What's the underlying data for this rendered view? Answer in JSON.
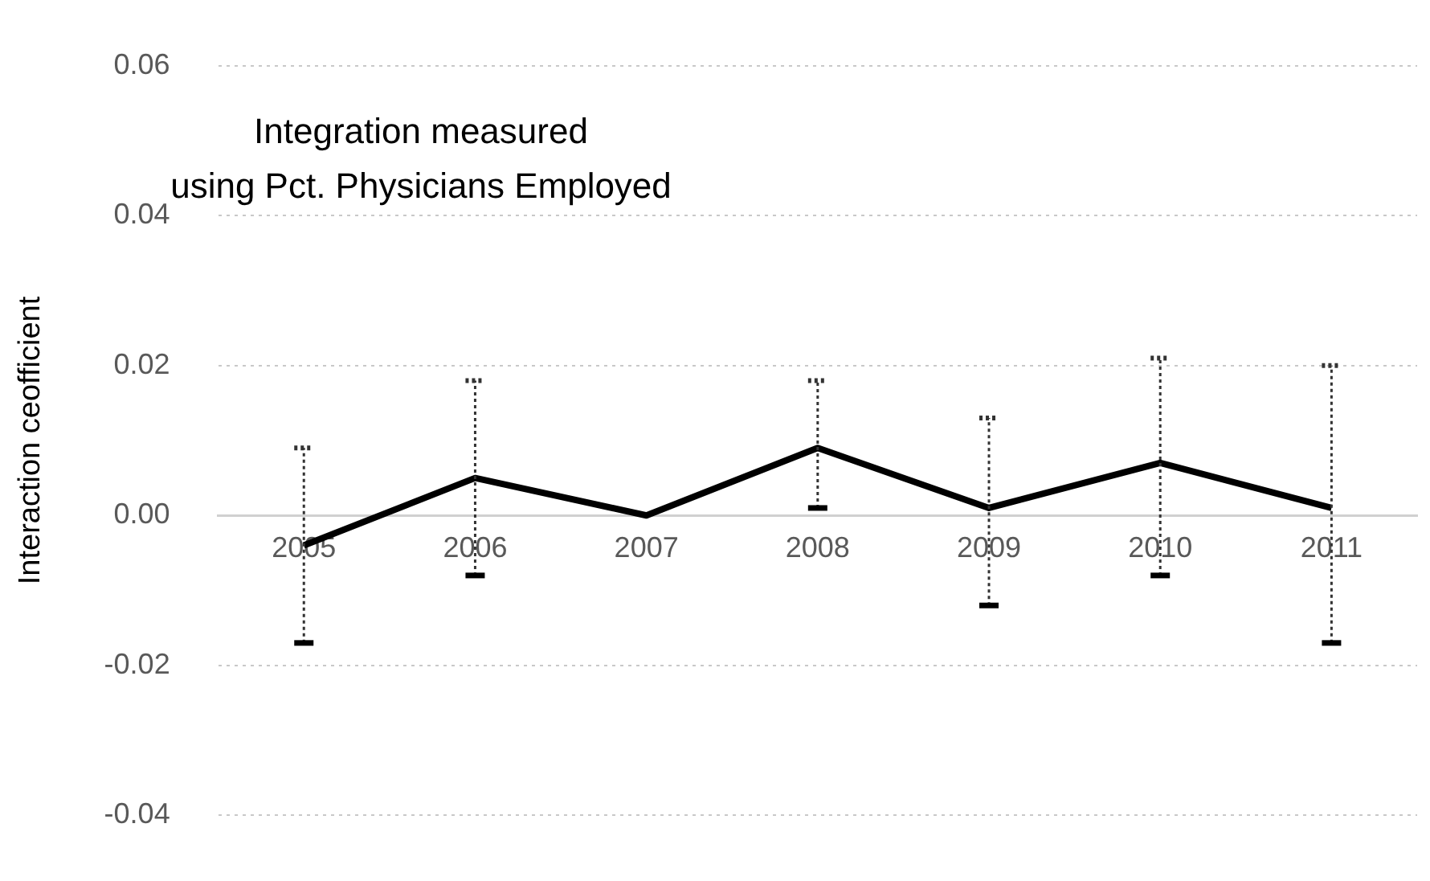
{
  "chart_data": {
    "type": "line",
    "title": "Integration measured\nusing Pct. Physicians Employed",
    "ylabel": "Interaction ceofficient",
    "categories": [
      "2005",
      "2006",
      "2007",
      "2008",
      "2009",
      "2010",
      "2011"
    ],
    "series": [
      {
        "color": "#000000",
        "values": [
          -0.004,
          0.005,
          0,
          0.009,
          0.001,
          0.007,
          0.001
        ],
        "errors": [
          [
            -0.017,
            0.009
          ],
          [
            -0.008,
            0.018
          ],
          null,
          [
            0.001,
            0.018
          ],
          [
            -0.012,
            0.013
          ],
          [
            -0.008,
            0.021
          ],
          [
            -0.017,
            0.02
          ]
        ]
      }
    ],
    "ylim": [
      -0.04,
      0.06
    ],
    "yticks": [
      {
        "value": -0.04,
        "label": "-0.04"
      },
      {
        "value": -0.02,
        "label": "-0.02"
      },
      {
        "value": 0,
        "label": "0.00"
      },
      {
        "value": 0.02,
        "label": "0.02"
      },
      {
        "value": 0.04,
        "label": "0.04"
      },
      {
        "value": 0.06,
        "label": "0.06"
      }
    ],
    "grid": "y",
    "legend": false,
    "marker": "none",
    "line_style": "solid"
  }
}
